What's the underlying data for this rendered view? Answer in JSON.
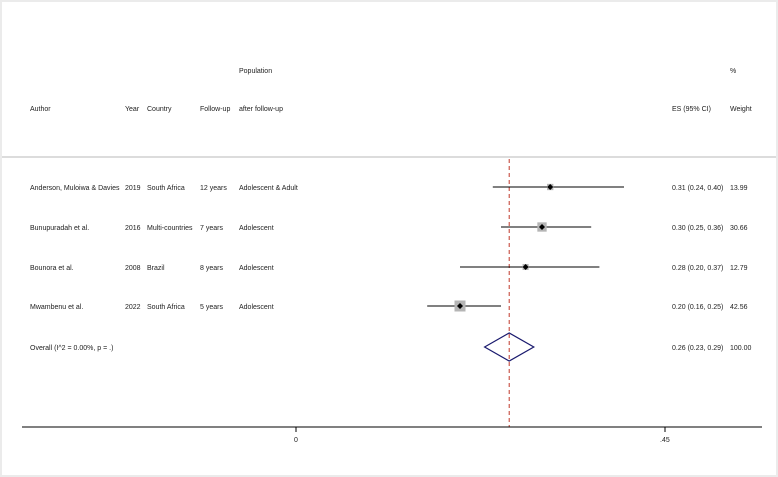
{
  "chart_data": {
    "type": "forest",
    "title": "",
    "columns": {
      "author": "Author",
      "year": "Year",
      "country": "Country",
      "followup": "Follow-up",
      "population_line1": "Population",
      "population_line2": "after follow-up",
      "es": "ES (95% CI)",
      "weight_line1": "%",
      "weight_line2": "Weight"
    },
    "studies": [
      {
        "author": "Anderson, Muloiwa & Davies",
        "year": "2019",
        "country": "South Africa",
        "followup": "12 years",
        "population": "Adolescent & Adult",
        "es": 0.31,
        "lo": 0.24,
        "hi": 0.4,
        "es_text": "0.31 (0.24, 0.40)",
        "weight": 13.99,
        "weight_text": "13.99"
      },
      {
        "author": "Bunupuradah et al.",
        "year": "2016",
        "country": "Multi-countries",
        "followup": "7 years",
        "population": "Adolescent",
        "es": 0.3,
        "lo": 0.25,
        "hi": 0.36,
        "es_text": "0.30 (0.25, 0.36)",
        "weight": 30.66,
        "weight_text": "30.66"
      },
      {
        "author": "Bounora et al.",
        "year": "2008",
        "country": "Brazil",
        "followup": "8 years",
        "population": "Adolescent",
        "es": 0.28,
        "lo": 0.2,
        "hi": 0.37,
        "es_text": "0.28 (0.20, 0.37)",
        "weight": 12.79,
        "weight_text": "12.79"
      },
      {
        "author": "Mwambenu et al.",
        "year": "2022",
        "country": "South Africa",
        "followup": "5 years",
        "population": "Adolescent",
        "es": 0.2,
        "lo": 0.16,
        "hi": 0.25,
        "es_text": "0.20 (0.16, 0.25)",
        "weight": 42.56,
        "weight_text": "42.56"
      }
    ],
    "overall": {
      "label": "Overall  (I^2 = 0.00%, p = .)",
      "es": 0.26,
      "lo": 0.23,
      "hi": 0.29,
      "es_text": "0.26 (0.23, 0.29)",
      "weight_text": "100.00"
    },
    "x_axis": {
      "ticks": [
        {
          "value": 0,
          "label": "0"
        },
        {
          "value": 0.45,
          "label": ".45"
        }
      ]
    },
    "colors": {
      "ci_line": "#000000",
      "weight_box": "#b5b5b5",
      "point": "#000000",
      "diamond": "#1a1a6e",
      "overall_line": "#c0392b",
      "header_rule": "#c8c8c8",
      "panel_bg": "#ffffff",
      "outer_bg": "#ebebeb"
    }
  }
}
